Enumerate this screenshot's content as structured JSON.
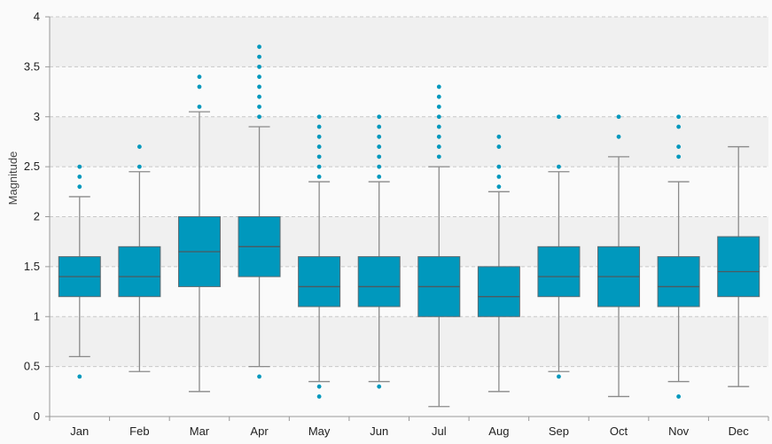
{
  "chart_data": {
    "type": "boxplot",
    "ylabel": "Magnitude",
    "xlabel": "",
    "ylim": [
      0,
      4
    ],
    "yticks": [
      0,
      0.5,
      1,
      1.5,
      2,
      2.5,
      3,
      3.5,
      4
    ],
    "ytick_labels": [
      "0",
      "0.5",
      "1",
      "1.5",
      "2",
      "2.5",
      "3",
      "3.5",
      "4"
    ],
    "grid": true,
    "colors": {
      "box": "#0098bd",
      "outlier": "#0098bd",
      "whisker": "#8a8a8a",
      "grid": "#c8c8c8",
      "band": "#f0f0f0"
    },
    "categories": [
      "Jan",
      "Feb",
      "Mar",
      "Apr",
      "May",
      "Jun",
      "Jul",
      "Aug",
      "Sep",
      "Oct",
      "Nov",
      "Dec"
    ],
    "boxes": [
      {
        "min": 0.6,
        "q1": 1.2,
        "median": 1.4,
        "q3": 1.6,
        "max": 2.2,
        "outliers": [
          0.4,
          2.3,
          2.4,
          2.5
        ]
      },
      {
        "min": 0.45,
        "q1": 1.2,
        "median": 1.4,
        "q3": 1.7,
        "max": 2.45,
        "outliers": [
          2.5,
          2.7
        ]
      },
      {
        "min": 0.25,
        "q1": 1.3,
        "median": 1.65,
        "q3": 2.0,
        "max": 3.05,
        "outliers": [
          3.1,
          3.3,
          3.4
        ]
      },
      {
        "min": 0.5,
        "q1": 1.4,
        "median": 1.7,
        "q3": 2.0,
        "max": 2.9,
        "outliers": [
          0.4,
          3.0,
          3.1,
          3.2,
          3.3,
          3.4,
          3.5,
          3.6,
          3.7
        ]
      },
      {
        "min": 0.35,
        "q1": 1.1,
        "median": 1.3,
        "q3": 1.6,
        "max": 2.35,
        "outliers": [
          0.2,
          0.3,
          2.4,
          2.5,
          2.6,
          2.7,
          2.8,
          2.9,
          3.0
        ]
      },
      {
        "min": 0.35,
        "q1": 1.1,
        "median": 1.3,
        "q3": 1.6,
        "max": 2.35,
        "outliers": [
          0.3,
          2.4,
          2.5,
          2.6,
          2.7,
          2.8,
          2.9,
          3.0
        ]
      },
      {
        "min": 0.1,
        "q1": 1.0,
        "median": 1.3,
        "q3": 1.6,
        "max": 2.5,
        "outliers": [
          2.6,
          2.7,
          2.8,
          2.9,
          3.0,
          3.1,
          3.2,
          3.3
        ]
      },
      {
        "min": 0.25,
        "q1": 1.0,
        "median": 1.2,
        "q3": 1.5,
        "max": 2.25,
        "outliers": [
          2.3,
          2.4,
          2.5,
          2.7,
          2.8
        ]
      },
      {
        "min": 0.45,
        "q1": 1.2,
        "median": 1.4,
        "q3": 1.7,
        "max": 2.45,
        "outliers": [
          0.4,
          2.5,
          3.0
        ]
      },
      {
        "min": 0.2,
        "q1": 1.1,
        "median": 1.4,
        "q3": 1.7,
        "max": 2.6,
        "outliers": [
          2.8,
          3.0
        ]
      },
      {
        "min": 0.35,
        "q1": 1.1,
        "median": 1.3,
        "q3": 1.6,
        "max": 2.35,
        "outliers": [
          0.2,
          2.6,
          2.7,
          2.9,
          3.0
        ]
      },
      {
        "min": 0.3,
        "q1": 1.2,
        "median": 1.45,
        "q3": 1.8,
        "max": 2.7,
        "outliers": []
      }
    ]
  }
}
